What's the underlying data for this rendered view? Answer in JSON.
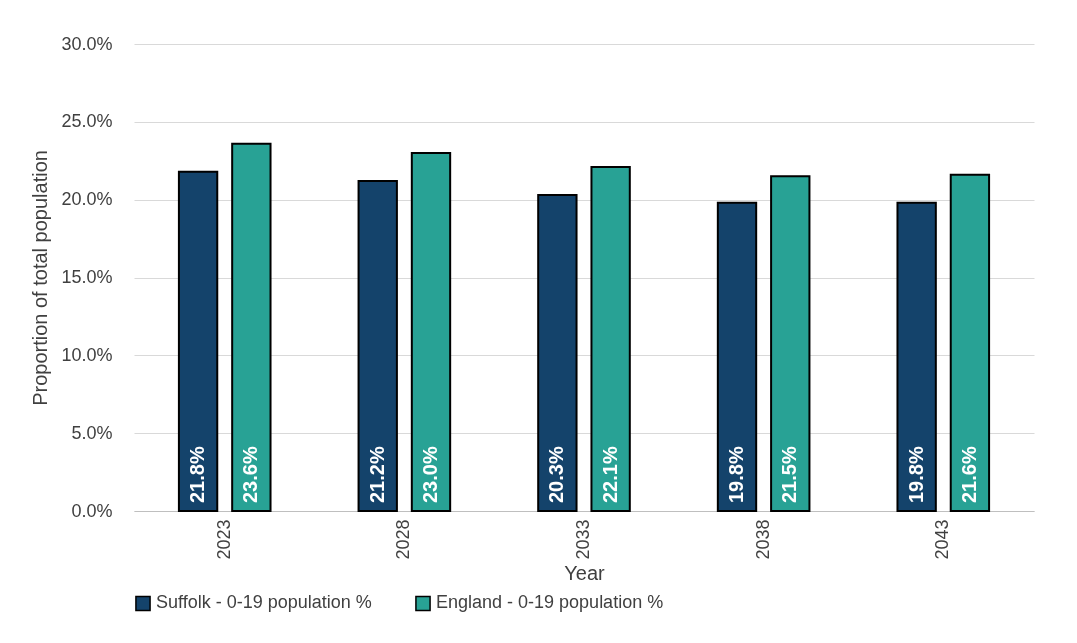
{
  "chart_data": {
    "type": "bar",
    "xlabel": "Year",
    "ylabel": "Proportion of total population",
    "categories": [
      "2023",
      "2028",
      "2033",
      "2038",
      "2043"
    ],
    "series": [
      {
        "name": "Suffolk - 0-19 population %",
        "color": "#14436b",
        "values": [
          21.8,
          21.2,
          20.3,
          19.8,
          19.8
        ],
        "value_labels": [
          "21.8%",
          "21.2%",
          "20.3%",
          "19.8%",
          "19.8%"
        ]
      },
      {
        "name": "England - 0-19 population %",
        "color": "#28a295",
        "values": [
          23.6,
          23.0,
          22.1,
          21.5,
          21.6
        ],
        "value_labels": [
          "23.6%",
          "23.0%",
          "22.1%",
          "21.5%",
          "21.6%"
        ]
      }
    ],
    "ylim": [
      0,
      30
    ],
    "yticks": [
      {
        "value": 0,
        "label": "0.0%"
      },
      {
        "value": 5,
        "label": "5.0%"
      },
      {
        "value": 10,
        "label": "10.0%"
      },
      {
        "value": 15,
        "label": "15.0%"
      },
      {
        "value": 20,
        "label": "20.0%"
      },
      {
        "value": 25,
        "label": "25.0%"
      },
      {
        "value": 30,
        "label": "30.0%"
      }
    ],
    "grid": true,
    "legend": "bottom"
  }
}
